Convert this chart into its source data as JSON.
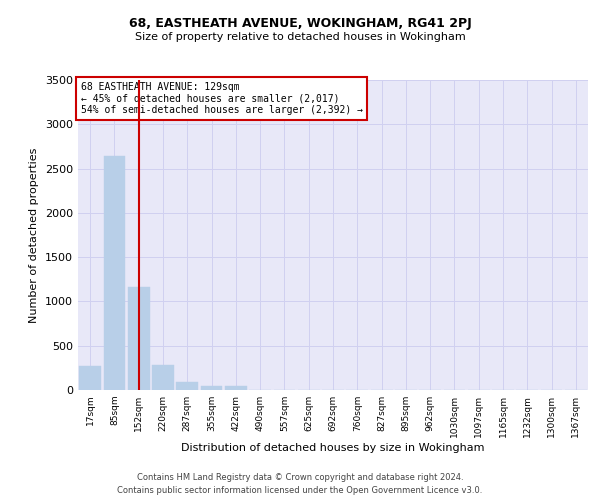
{
  "title1": "68, EASTHEATH AVENUE, WOKINGHAM, RG41 2PJ",
  "title2": "Size of property relative to detached houses in Wokingham",
  "xlabel": "Distribution of detached houses by size in Wokingham",
  "ylabel": "Number of detached properties",
  "footnote1": "Contains HM Land Registry data © Crown copyright and database right 2024.",
  "footnote2": "Contains public sector information licensed under the Open Government Licence v3.0.",
  "annotation_line1": "68 EASTHEATH AVENUE: 129sqm",
  "annotation_line2": "← 45% of detached houses are smaller (2,017)",
  "annotation_line3": "54% of semi-detached houses are larger (2,392) →",
  "bar_color": "#b8cfe8",
  "grid_color": "#d0d0f0",
  "background_color": "#e8e8f8",
  "vline_color": "#cc0000",
  "categories": [
    "17sqm",
    "85sqm",
    "152sqm",
    "220sqm",
    "287sqm",
    "355sqm",
    "422sqm",
    "490sqm",
    "557sqm",
    "625sqm",
    "692sqm",
    "760sqm",
    "827sqm",
    "895sqm",
    "962sqm",
    "1030sqm",
    "1097sqm",
    "1165sqm",
    "1232sqm",
    "1300sqm",
    "1367sqm"
  ],
  "values": [
    270,
    2640,
    1160,
    285,
    90,
    50,
    45,
    0,
    0,
    0,
    0,
    0,
    0,
    0,
    0,
    0,
    0,
    0,
    0,
    0,
    0
  ],
  "ylim": [
    0,
    3500
  ],
  "yticks": [
    0,
    500,
    1000,
    1500,
    2000,
    2500,
    3000,
    3500
  ],
  "vline_position": 2.0,
  "figsize": [
    6.0,
    5.0
  ],
  "dpi": 100
}
